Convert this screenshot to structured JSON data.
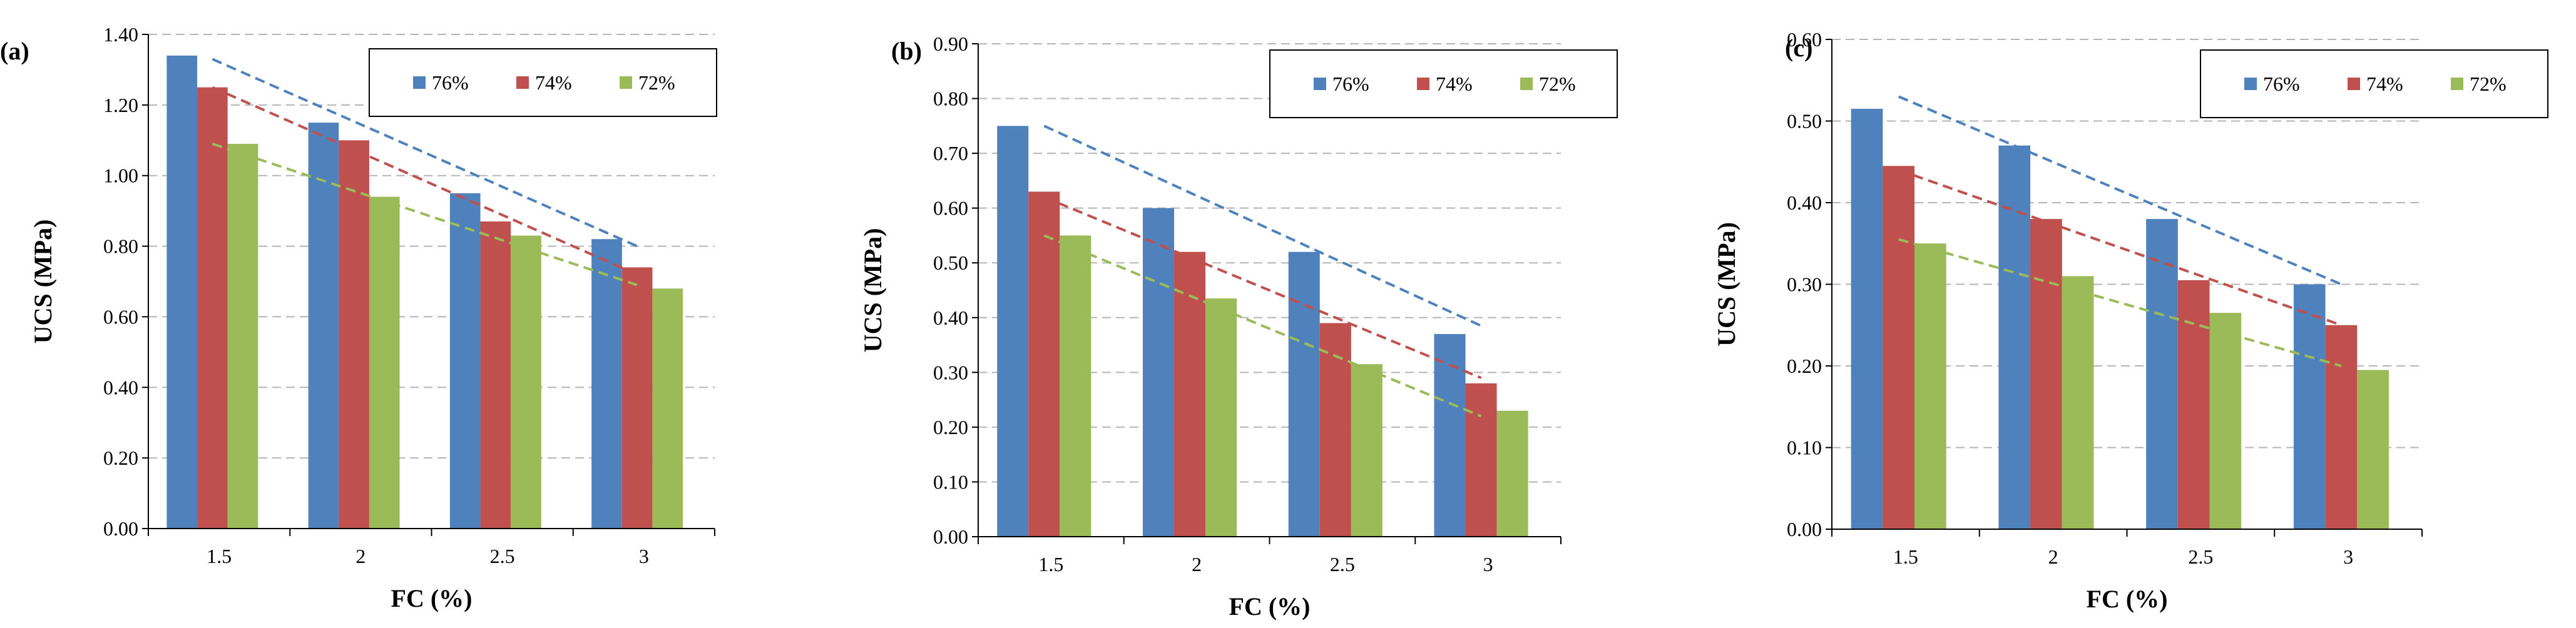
{
  "chart_data": [
    {
      "type": "bar",
      "panel_label": "(a)",
      "categories": [
        "1.5",
        "2",
        "2.5",
        "3"
      ],
      "series": [
        {
          "name": "76%",
          "color": "#4f81bd",
          "values": [
            1.34,
            1.15,
            0.95,
            0.82
          ]
        },
        {
          "name": "74%",
          "color": "#c0504d",
          "values": [
            1.25,
            1.1,
            0.87,
            0.74
          ]
        },
        {
          "name": "72%",
          "color": "#9bbb59",
          "values": [
            1.09,
            0.94,
            0.83,
            0.68
          ]
        }
      ],
      "trendlines": [
        {
          "series": "76%",
          "start": 1.33,
          "end": 0.8
        },
        {
          "series": "74%",
          "start": 1.25,
          "end": 0.72
        },
        {
          "series": "72%",
          "start": 1.09,
          "end": 0.69
        }
      ],
      "y_ticks": [
        "0.00",
        "0.20",
        "0.40",
        "0.60",
        "0.80",
        "1.00",
        "1.20",
        "1.40"
      ],
      "ylim": [
        0,
        1.4
      ],
      "xlabel": "FC (%)",
      "ylabel": "UCS (MPa)",
      "legend": "top-right",
      "grid": true
    },
    {
      "type": "bar",
      "panel_label": "(b)",
      "categories": [
        "1.5",
        "2",
        "2.5",
        "3"
      ],
      "series": [
        {
          "name": "76%",
          "color": "#4f81bd",
          "values": [
            0.75,
            0.6,
            0.52,
            0.37
          ]
        },
        {
          "name": "74%",
          "color": "#c0504d",
          "values": [
            0.63,
            0.52,
            0.39,
            0.28
          ]
        },
        {
          "name": "72%",
          "color": "#9bbb59",
          "values": [
            0.55,
            0.435,
            0.315,
            0.23
          ]
        }
      ],
      "trendlines": [
        {
          "series": "76%",
          "start": 0.75,
          "end": 0.385
        },
        {
          "series": "74%",
          "start": 0.62,
          "end": 0.29
        },
        {
          "series": "72%",
          "start": 0.55,
          "end": 0.22
        }
      ],
      "y_ticks": [
        "0.00",
        "0.10",
        "0.20",
        "0.30",
        "0.40",
        "0.50",
        "0.60",
        "0.70",
        "0.80",
        "0.90"
      ],
      "ylim": [
        0,
        0.9
      ],
      "xlabel": "FC (%)",
      "ylabel": "UCS (MPa)",
      "legend": "top-right",
      "grid": true
    },
    {
      "type": "bar",
      "panel_label": "(c)",
      "categories": [
        "1.5",
        "2",
        "2.5",
        "3"
      ],
      "series": [
        {
          "name": "76%",
          "color": "#4f81bd",
          "values": [
            0.515,
            0.47,
            0.38,
            0.3
          ]
        },
        {
          "name": "74%",
          "color": "#c0504d",
          "values": [
            0.445,
            0.38,
            0.305,
            0.25
          ]
        },
        {
          "name": "72%",
          "color": "#9bbb59",
          "values": [
            0.35,
            0.31,
            0.265,
            0.195
          ]
        }
      ],
      "trendlines": [
        {
          "series": "76%",
          "start": 0.53,
          "end": 0.3
        },
        {
          "series": "74%",
          "start": 0.44,
          "end": 0.25
        },
        {
          "series": "72%",
          "start": 0.355,
          "end": 0.2
        }
      ],
      "y_ticks": [
        "0.00",
        "0.10",
        "0.20",
        "0.30",
        "0.40",
        "0.50",
        "0.60"
      ],
      "ylim": [
        0,
        0.6
      ],
      "xlabel": "FC (%)",
      "ylabel": "UCS (MPa)",
      "legend": "top-right",
      "grid": true
    }
  ]
}
